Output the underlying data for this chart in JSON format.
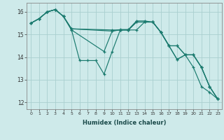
{
  "xlabel": "Humidex (Indice chaleur)",
  "bg_color": "#ceeaea",
  "grid_color": "#aacfcf",
  "line_color": "#1a7a6e",
  "xlim": [
    -0.5,
    23.5
  ],
  "ylim": [
    11.7,
    16.4
  ],
  "yticks": [
    12,
    13,
    14,
    15,
    16
  ],
  "xticks": [
    0,
    1,
    2,
    3,
    4,
    5,
    6,
    7,
    8,
    9,
    10,
    11,
    12,
    13,
    14,
    15,
    16,
    17,
    18,
    19,
    20,
    21,
    22,
    23
  ],
  "series": [
    {
      "x": [
        0,
        1,
        2,
        3,
        4,
        5,
        6,
        7,
        8,
        9,
        10,
        11,
        12,
        13,
        14,
        15,
        16,
        17,
        18,
        19,
        20,
        21,
        22,
        23
      ],
      "y": [
        15.5,
        15.7,
        16.0,
        16.1,
        15.8,
        15.2,
        13.85,
        13.85,
        13.85,
        13.25,
        14.25,
        15.2,
        15.2,
        15.2,
        15.55,
        15.55,
        15.1,
        14.5,
        13.9,
        14.1,
        13.55,
        12.7,
        12.45,
        12.15
      ]
    },
    {
      "x": [
        0,
        1,
        2,
        3,
        4,
        5,
        10,
        11,
        12,
        13,
        14,
        15,
        16,
        17,
        18,
        19,
        20,
        21,
        22,
        23
      ],
      "y": [
        15.5,
        15.7,
        16.0,
        16.1,
        15.8,
        15.25,
        15.2,
        15.2,
        15.2,
        15.55,
        15.55,
        15.55,
        15.1,
        14.5,
        14.5,
        14.1,
        14.1,
        13.55,
        12.7,
        12.15
      ]
    },
    {
      "x": [
        0,
        1,
        2,
        3,
        4,
        5,
        10,
        11,
        12,
        13,
        14,
        15,
        16,
        17,
        18,
        19,
        20,
        21,
        22,
        23
      ],
      "y": [
        15.5,
        15.7,
        16.0,
        16.1,
        15.8,
        15.25,
        15.15,
        15.22,
        15.22,
        15.6,
        15.6,
        15.55,
        15.1,
        14.5,
        14.5,
        14.1,
        14.1,
        13.55,
        12.7,
        12.15
      ]
    },
    {
      "x": [
        0,
        1,
        2,
        3,
        4,
        5,
        9,
        10,
        11,
        12,
        13,
        14,
        15,
        16,
        17,
        18,
        19,
        20,
        21,
        22,
        23
      ],
      "y": [
        15.5,
        15.7,
        16.0,
        16.1,
        15.8,
        15.2,
        14.25,
        15.15,
        15.2,
        15.2,
        15.55,
        15.55,
        15.55,
        15.1,
        14.5,
        13.9,
        14.1,
        14.1,
        13.55,
        12.7,
        12.15
      ]
    }
  ]
}
